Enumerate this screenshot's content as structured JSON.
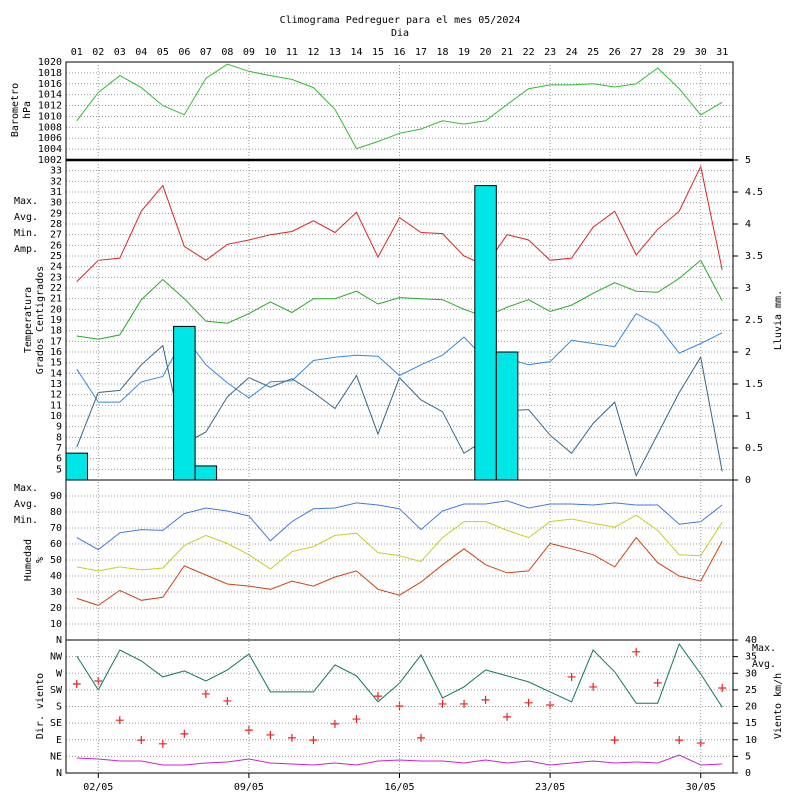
{
  "chart_data": [
    {
      "type": "line",
      "title": "Climograma Pedreguer para el mes 05/2024",
      "xlabel": "Dia",
      "categories": [
        "01",
        "02",
        "03",
        "04",
        "05",
        "06",
        "07",
        "08",
        "09",
        "10",
        "11",
        "12",
        "13",
        "14",
        "15",
        "16",
        "17",
        "18",
        "19",
        "20",
        "21",
        "22",
        "23",
        "24",
        "25",
        "26",
        "27",
        "28",
        "29",
        "30",
        "31"
      ],
      "ylabel": [
        "Barometro",
        "hPa"
      ],
      "ylim": [
        1002,
        1020
      ],
      "yticks": [
        1002,
        1004,
        1006,
        1008,
        1010,
        1012,
        1014,
        1016,
        1018,
        1020
      ],
      "grid": true,
      "series": [
        {
          "color": "#33bb33",
          "values": [
            1009.2,
            1014.4,
            1017.5,
            1015.3,
            1012,
            1010.3,
            1017,
            1019.6,
            1018.3,
            1017.5,
            1016.8,
            1015.3,
            1011.3,
            1004.1,
            1005.4,
            1006.9,
            1007.7,
            1009.2,
            1008.6,
            1009.2,
            1012.2,
            1015.1,
            1015.8,
            1015.8,
            1016,
            1015.4,
            1016,
            1018.9,
            1015.1,
            1010.3,
            1012.6
          ]
        }
      ]
    },
    {
      "type": "line",
      "ylabel": [
        "Temperatura",
        "Grados Centigrados"
      ],
      "y2label": "Lluvia mm.",
      "ylim": [
        4,
        34
      ],
      "yticks": [
        5,
        6,
        7,
        8,
        9,
        10,
        11,
        12,
        13,
        14,
        15,
        16,
        17,
        18,
        19,
        20,
        21,
        22,
        23,
        24,
        25,
        26,
        27,
        28,
        29,
        30,
        31,
        32,
        33
      ],
      "y2lim": [
        0,
        5
      ],
      "y2ticks": [
        0,
        0.5,
        1,
        1.5,
        2,
        2.5,
        3,
        3.5,
        4,
        4.5,
        5
      ],
      "grid": true,
      "legend": "left",
      "series": [
        {
          "name": "Max.",
          "color": "#dd2222",
          "values": [
            22.6,
            24.6,
            24.8,
            29.2,
            31.6,
            25.9,
            24.6,
            26.1,
            26.5,
            27,
            27.3,
            28.3,
            27.2,
            29.1,
            24.9,
            28.6,
            27.2,
            27.1,
            25,
            24.1,
            27,
            26.5,
            24.6,
            24.8,
            27.7,
            29.2,
            25.1,
            27.5,
            29.2,
            33.4,
            23.7
          ]
        },
        {
          "name": "Avg.",
          "color": "#22aa22",
          "values": [
            17.5,
            17.2,
            17.6,
            20.9,
            22.8,
            21,
            18.9,
            18.7,
            19.6,
            20.7,
            19.7,
            21,
            21,
            21.7,
            20.5,
            21.1,
            21,
            20.9,
            20,
            19.3,
            20.2,
            20.9,
            19.8,
            20.4,
            21.5,
            22.5,
            21.7,
            21.6,
            22.9,
            24.6,
            20.8
          ]
        },
        {
          "name": "Min.",
          "color": "#3388dd",
          "values": [
            14.4,
            11.3,
            11.3,
            13.2,
            13.7,
            17.5,
            14.8,
            13.1,
            11.7,
            13.2,
            13.3,
            15.2,
            15.5,
            15.7,
            15.6,
            13.8,
            14.8,
            15.7,
            17.4,
            15.3,
            15.4,
            14.8,
            15.1,
            17.1,
            16.8,
            16.5,
            19.6,
            18.5,
            15.9,
            16.8,
            17.8
          ]
        },
        {
          "name": "Amp.",
          "color": "#336688",
          "values": [
            7.1,
            12.2,
            12.4,
            14.8,
            16.6,
            7.4,
            8.5,
            11.8,
            13.6,
            12.7,
            13.5,
            12.2,
            10.7,
            13.8,
            8.3,
            13.6,
            11.5,
            10.4,
            6.5,
            7.8,
            10.5,
            10.6,
            8.2,
            6.5,
            9.3,
            11.3,
            4.4,
            8.3,
            12.2,
            15.5,
            4.8
          ]
        },
        {
          "type": "bar",
          "axis": "y2",
          "color": "#00e5e5",
          "values": [
            0.42,
            0,
            0,
            0,
            0,
            2.4,
            0.22,
            0,
            0,
            0,
            0,
            0,
            0,
            0,
            0,
            0,
            0,
            0,
            0,
            4.6,
            2.0,
            0,
            0,
            0,
            0,
            0,
            0,
            0,
            0,
            0,
            0
          ]
        }
      ]
    },
    {
      "type": "line",
      "ylabel": [
        "Humedad",
        "%"
      ],
      "ylim": [
        0,
        100
      ],
      "yticks": [
        10,
        20,
        30,
        40,
        50,
        60,
        70,
        80,
        90
      ],
      "grid": true,
      "legend": "left",
      "series": [
        {
          "name": "Max.",
          "color": "#4477dd",
          "values": [
            64,
            56.5,
            67,
            69,
            68.5,
            79,
            82.5,
            80.6,
            77.5,
            62,
            74,
            82,
            82.5,
            85.7,
            84.4,
            82,
            69,
            80.6,
            85,
            85,
            87,
            82.5,
            85,
            85,
            84.4,
            85.7,
            84.4,
            84.4,
            72.4,
            74,
            84.4
          ]
        },
        {
          "name": "Avg.",
          "color": "#cccc22",
          "values": [
            45.7,
            43.2,
            45.7,
            43.8,
            45,
            59,
            65.4,
            60.3,
            53.3,
            44.4,
            55.2,
            58.4,
            65.4,
            66.7,
            54.6,
            52.7,
            49,
            64,
            74,
            74,
            68.5,
            64,
            74,
            75.6,
            73,
            70.5,
            78,
            68.5,
            53.3,
            52.7,
            73.6
          ]
        },
        {
          "name": "Min.",
          "color": "#cc4411",
          "values": [
            26,
            21.6,
            31,
            24.8,
            26.7,
            46.3,
            40.6,
            35,
            33.7,
            31.7,
            36.8,
            33.7,
            39.4,
            43.2,
            31.7,
            28,
            36.2,
            47,
            57,
            47,
            42,
            43.2,
            60.3,
            57,
            53.3,
            45.7,
            64,
            48.3,
            40,
            36.8,
            61.6
          ]
        }
      ]
    },
    {
      "type": "line",
      "x": [
        1,
        2,
        3,
        4,
        5,
        6,
        7,
        8,
        9,
        10,
        11,
        12,
        13,
        14,
        15,
        16,
        17,
        18,
        19,
        20,
        21,
        22,
        23,
        24,
        25,
        26,
        27,
        28,
        29,
        30,
        31
      ],
      "xlim": [
        0.5,
        31.5
      ],
      "xticks": [
        {
          "value": 2,
          "label": "02/05"
        },
        {
          "value": 9,
          "label": "09/05"
        },
        {
          "value": 16,
          "label": "16/05"
        },
        {
          "value": 23,
          "label": "23/05"
        },
        {
          "value": 30,
          "label": "30/05"
        }
      ],
      "ylabel": [
        "Dir. viento"
      ],
      "ylim": [
        0,
        360
      ],
      "yticks": [
        {
          "value": 0,
          "label": "N"
        },
        {
          "value": 45,
          "label": "NE"
        },
        {
          "value": 90,
          "label": "E"
        },
        {
          "value": 135,
          "label": "SE"
        },
        {
          "value": 180,
          "label": "S"
        },
        {
          "value": 225,
          "label": "SW"
        },
        {
          "value": 270,
          "label": "W"
        },
        {
          "value": 315,
          "label": "NW"
        },
        {
          "value": 360,
          "label": "N"
        }
      ],
      "y2label": "Viento km/h",
      "y2lim": [
        0,
        40
      ],
      "y2ticks": [
        0,
        5,
        10,
        15,
        20,
        25,
        30,
        35,
        40
      ],
      "grid": true,
      "legend": "right",
      "series": [
        {
          "type": "scatter",
          "color": "#ee2222",
          "values": [
            241,
            249,
            143,
            89,
            79,
            106,
            214,
            195,
            116,
            103,
            95,
            89,
            133,
            146,
            208,
            181,
            95,
            187,
            187,
            198,
            152,
            190,
            184,
            260,
            233,
            89,
            328,
            244,
            89,
            81,
            230
          ]
        },
        {
          "name": "Max.",
          "axis": "y2",
          "color": "#117755",
          "values": [
            35.2,
            25,
            37,
            33.7,
            28.9,
            30.7,
            27.7,
            31,
            35.8,
            24.4,
            24.4,
            24.4,
            32.5,
            29.2,
            21.4,
            27,
            35.5,
            22.6,
            25.9,
            31,
            29.2,
            27.4,
            24.4,
            21.4,
            37,
            30.4,
            21,
            21,
            38.8,
            29.8,
            19.8
          ]
        },
        {
          "name": "Avg.",
          "axis": "y2",
          "color": "#cc22cc",
          "values": [
            4.5,
            4.2,
            3.6,
            3.6,
            2.4,
            2.4,
            3,
            3.3,
            4.2,
            3,
            2.7,
            2.4,
            3,
            2.4,
            3.6,
            3.9,
            3.6,
            3.6,
            3,
            3.9,
            3,
            3.6,
            2.4,
            3,
            3.6,
            3,
            3.3,
            3,
            5.4,
            2.4,
            2.7
          ]
        }
      ]
    }
  ]
}
